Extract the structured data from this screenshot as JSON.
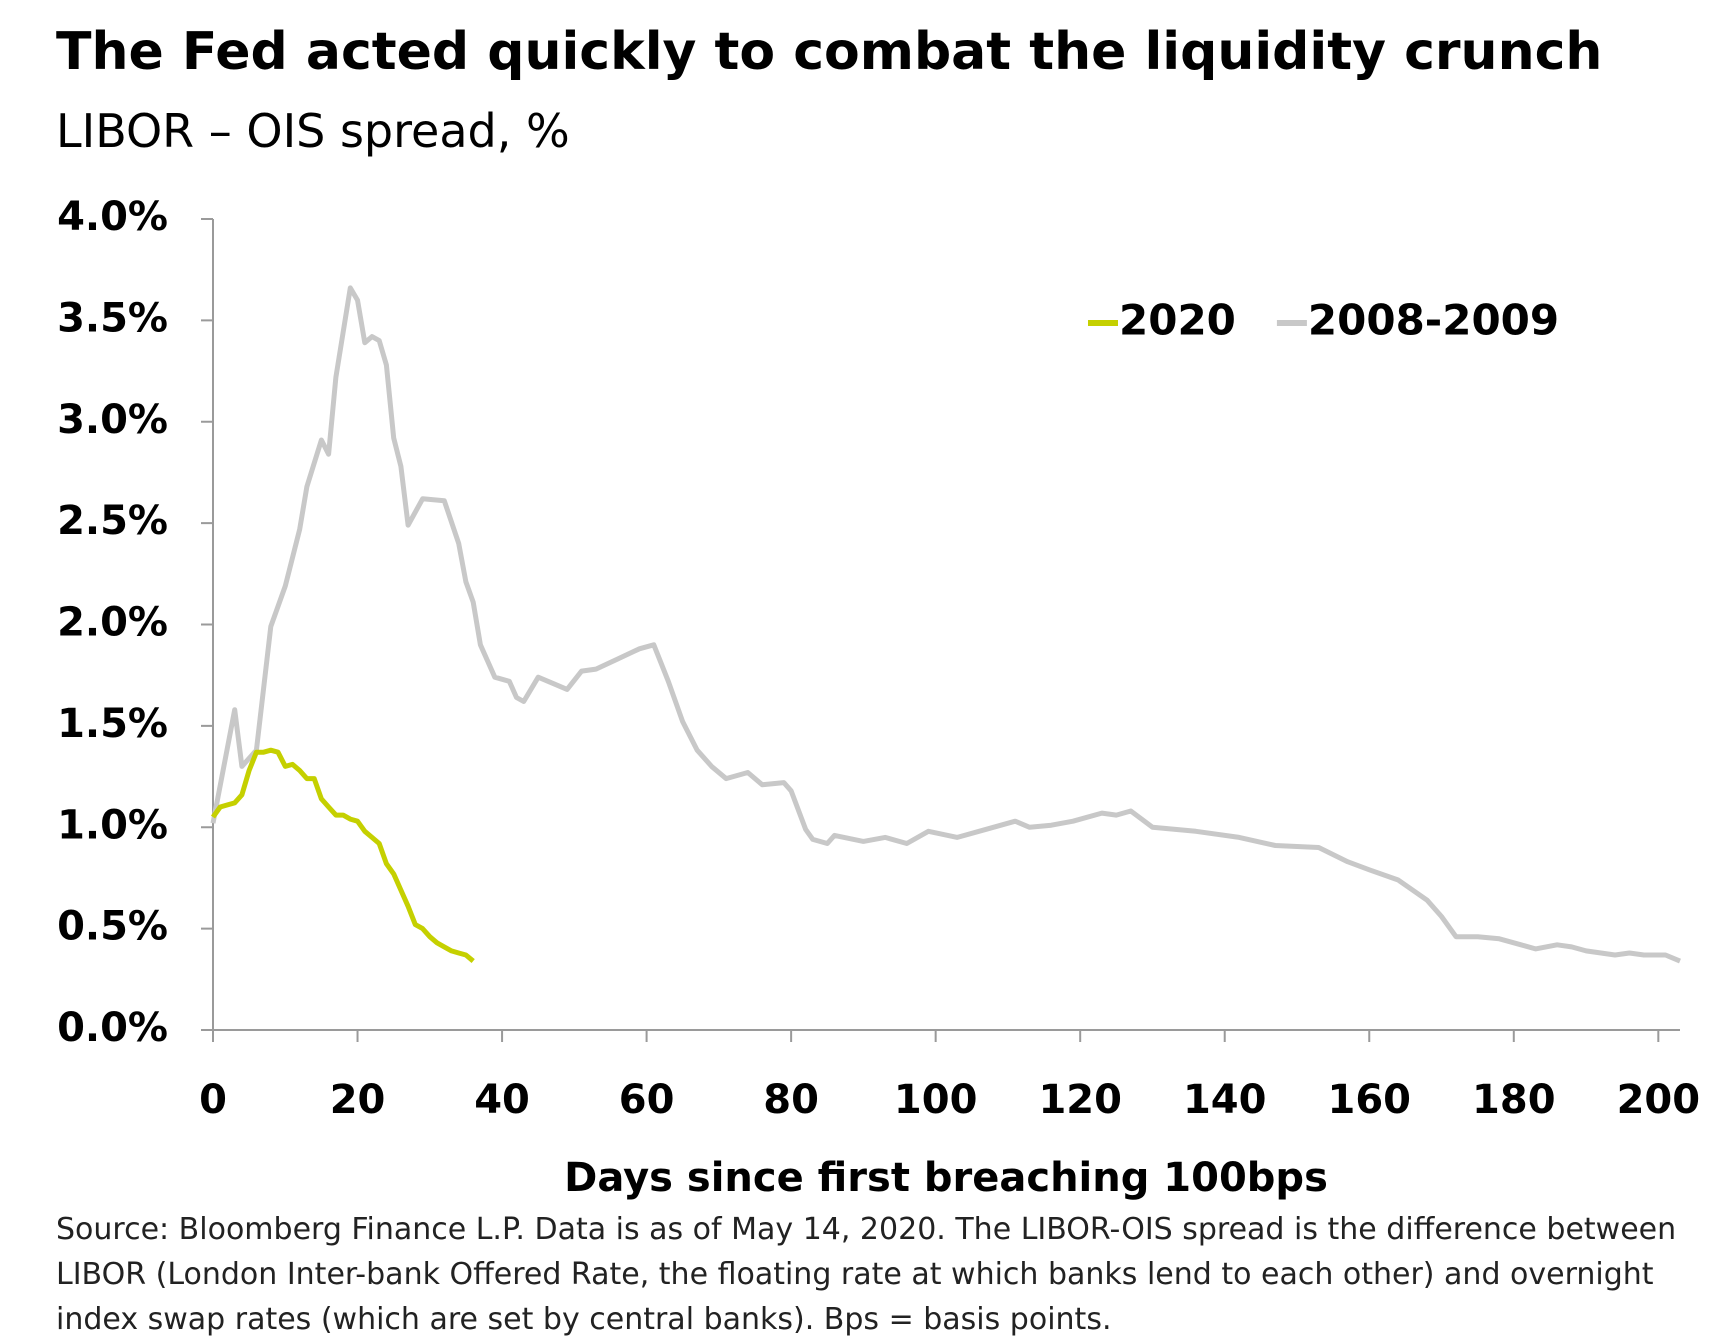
{
  "chart_data": {
    "type": "line",
    "title": "The Fed acted quickly to combat the liquidity crunch",
    "subtitle": "LIBOR – OIS spread, %",
    "x_label": "Days since first breaching 100bps",
    "source": "Source: Bloomberg Finance L.P. Data is as of May 14, 2020. The LIBOR-OIS spread is the difference between LIBOR (London Inter-bank Offered Rate, the floating rate at which banks lend to each other) and overnight index swap rates (which are set by central banks). Bps = basis points.",
    "xlim": [
      0,
      203
    ],
    "xticks": [
      0,
      20,
      40,
      60,
      80,
      100,
      120,
      140,
      160,
      180,
      200
    ],
    "ylim": [
      0,
      4
    ],
    "yticks": [
      {
        "value": 0,
        "label": "0.0%"
      },
      {
        "value": 0.5,
        "label": "0.5%"
      },
      {
        "value": 1,
        "label": "1.0%"
      },
      {
        "value": 1.5,
        "label": "1.5%"
      },
      {
        "value": 2,
        "label": "2.0%"
      },
      {
        "value": 2.5,
        "label": "2.5%"
      },
      {
        "value": 3,
        "label": "3.0%"
      },
      {
        "value": 3.5,
        "label": "3.5%"
      },
      {
        "value": 4,
        "label": "4.0%"
      }
    ],
    "legend_position": "upper right",
    "series": [
      {
        "name": "2008-2009",
        "color": "#c8c8c8",
        "x": [
          0,
          3,
          4,
          6,
          8,
          10,
          12,
          13,
          15,
          16,
          17,
          19,
          20,
          21,
          22,
          23,
          24,
          25,
          26,
          27,
          29,
          32,
          34,
          35,
          36,
          37,
          38,
          39,
          41,
          42,
          43,
          45,
          47,
          49,
          51,
          53,
          56,
          59,
          61,
          63,
          65,
          67,
          69,
          71,
          74,
          76,
          79,
          80,
          82,
          83,
          85,
          86,
          90,
          93,
          96,
          99,
          103,
          107,
          111,
          113,
          116,
          119,
          123,
          125,
          127,
          130,
          133,
          136,
          142,
          147,
          153,
          157,
          160,
          164,
          168,
          170,
          172,
          175,
          178,
          181,
          183,
          186,
          188,
          190,
          194,
          196,
          198,
          201,
          203
        ],
        "values": [
          1.02,
          1.58,
          1.3,
          1.38,
          1.99,
          2.19,
          2.47,
          2.68,
          2.91,
          2.84,
          3.22,
          3.66,
          3.6,
          3.39,
          3.42,
          3.4,
          3.28,
          2.92,
          2.78,
          2.49,
          2.62,
          2.61,
          2.4,
          2.21,
          2.11,
          1.9,
          1.82,
          1.74,
          1.72,
          1.64,
          1.62,
          1.74,
          1.71,
          1.68,
          1.77,
          1.78,
          1.83,
          1.88,
          1.9,
          1.72,
          1.52,
          1.38,
          1.3,
          1.24,
          1.27,
          1.21,
          1.22,
          1.18,
          0.99,
          0.94,
          0.92,
          0.96,
          0.93,
          0.95,
          0.92,
          0.98,
          0.95,
          0.99,
          1.03,
          1.0,
          1.01,
          1.03,
          1.07,
          1.06,
          1.08,
          1.0,
          0.99,
          0.98,
          0.95,
          0.91,
          0.9,
          0.83,
          0.79,
          0.74,
          0.64,
          0.56,
          0.46,
          0.46,
          0.45,
          0.42,
          0.4,
          0.42,
          0.41,
          0.39,
          0.37,
          0.38,
          0.37,
          0.37,
          0.34
        ]
      },
      {
        "name": "2020",
        "color": "#c5d000",
        "x": [
          0,
          1,
          2,
          3,
          4,
          5,
          6,
          7,
          8,
          9,
          10,
          11,
          12,
          13,
          14,
          15,
          16,
          17,
          18,
          19,
          20,
          21,
          22,
          23,
          24,
          25,
          26,
          27,
          28,
          29,
          30,
          31,
          32,
          33,
          34,
          35,
          36
        ],
        "values": [
          1.05,
          1.1,
          1.11,
          1.12,
          1.16,
          1.28,
          1.37,
          1.37,
          1.38,
          1.37,
          1.3,
          1.31,
          1.28,
          1.24,
          1.24,
          1.14,
          1.1,
          1.06,
          1.06,
          1.04,
          1.03,
          0.98,
          0.95,
          0.92,
          0.82,
          0.77,
          0.69,
          0.61,
          0.52,
          0.5,
          0.46,
          0.43,
          0.41,
          0.39,
          0.38,
          0.37,
          0.34
        ]
      }
    ]
  }
}
